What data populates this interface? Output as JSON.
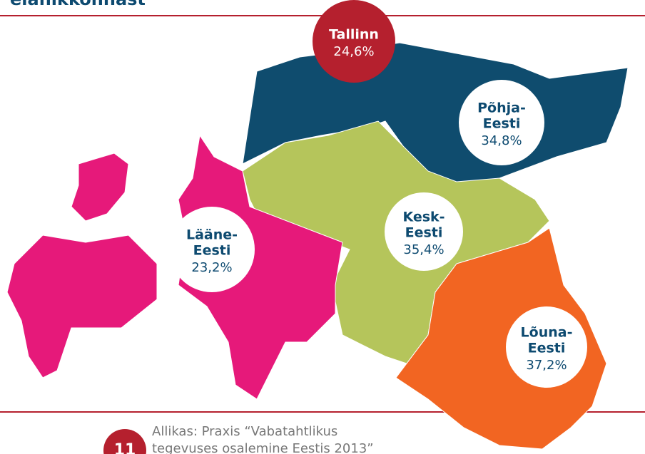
{
  "header": {
    "title": "elanikkonnast"
  },
  "regions": [
    {
      "name": [
        "Tallinn"
      ],
      "value": "24,6%"
    },
    {
      "name": [
        "Põhja-",
        "Eesti"
      ],
      "value": "34,8%"
    },
    {
      "name": [
        "Kesk-",
        "Eesti"
      ],
      "value": "35,4%"
    },
    {
      "name": [
        "Lääne-",
        "Eesti"
      ],
      "value": "23,2%"
    },
    {
      "name": [
        "Lõuna-",
        "Eesti"
      ],
      "value": "37,2%"
    }
  ],
  "source": {
    "lines": [
      "Allikas: Praxis “Vabatahtlikus",
      "tegevuses osalemine Eestis 2013”"
    ]
  },
  "badge": "11"
}
